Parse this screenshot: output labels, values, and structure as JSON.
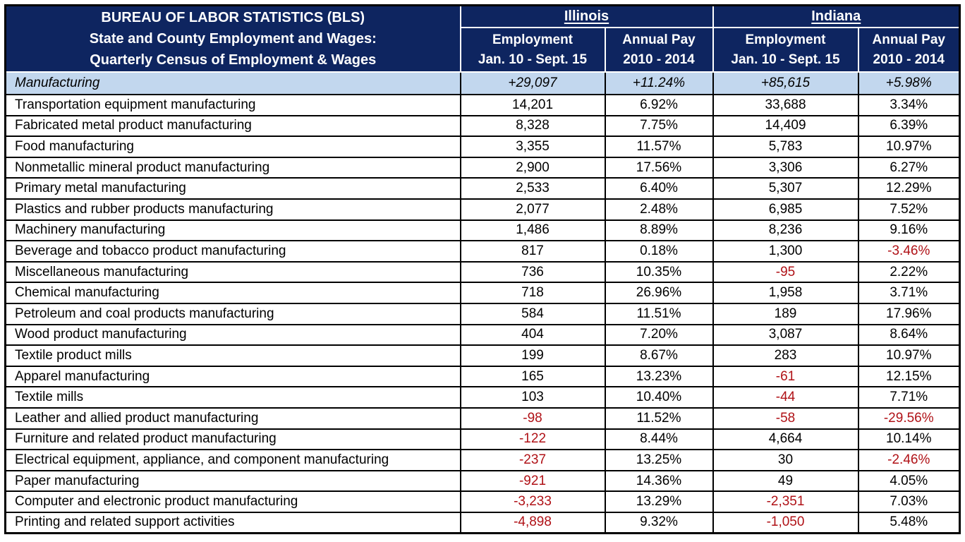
{
  "colors": {
    "header_bg": "#0E2560",
    "header_text": "#ffffff",
    "summary_bg": "#C2D7EE",
    "negative_text": "#B01217",
    "body_text": "#000000",
    "grid_border": "#000000",
    "header_border": "#ffffff"
  },
  "header": {
    "title_lines": [
      "BUREAU OF LABOR STATISTICS (BLS)",
      "State and County Employment and Wages:",
      "Quarterly Census of Employment & Wages"
    ],
    "groups": [
      {
        "state": "Illinois",
        "sub": [
          {
            "line1": "Employment",
            "line2": "Jan. 10 - Sept. 15"
          },
          {
            "line1": "Annual Pay",
            "line2": "2010 - 2014"
          }
        ]
      },
      {
        "state": "Indiana",
        "sub": [
          {
            "line1": "Employment",
            "line2": "Jan. 10 - Sept. 15"
          },
          {
            "line1": "Annual Pay",
            "line2": "2010 - 2014"
          }
        ]
      }
    ]
  },
  "summary_row": {
    "label": "Manufacturing",
    "values": [
      "+29,097",
      "+11.24%",
      "+85,615",
      "+5.98%"
    ]
  },
  "rows": [
    {
      "label": "Transportation equipment manufacturing",
      "values": [
        "14,201",
        "6.92%",
        "33,688",
        "3.34%"
      ]
    },
    {
      "label": "Fabricated metal product manufacturing",
      "values": [
        "8,328",
        "7.75%",
        "14,409",
        "6.39%"
      ]
    },
    {
      "label": "Food manufacturing",
      "values": [
        "3,355",
        "11.57%",
        "5,783",
        "10.97%"
      ]
    },
    {
      "label": "Nonmetallic mineral product manufacturing",
      "values": [
        "2,900",
        "17.56%",
        "3,306",
        "6.27%"
      ]
    },
    {
      "label": "Primary metal manufacturing",
      "values": [
        "2,533",
        "6.40%",
        "5,307",
        "12.29%"
      ]
    },
    {
      "label": "Plastics and rubber products manufacturing",
      "values": [
        "2,077",
        "2.48%",
        "6,985",
        "7.52%"
      ]
    },
    {
      "label": "Machinery manufacturing",
      "values": [
        "1,486",
        "8.89%",
        "8,236",
        "9.16%"
      ]
    },
    {
      "label": "Beverage and tobacco product manufacturing",
      "values": [
        "817",
        "0.18%",
        "1,300",
        "-3.46%"
      ]
    },
    {
      "label": "Miscellaneous manufacturing",
      "values": [
        "736",
        "10.35%",
        "-95",
        "2.22%"
      ]
    },
    {
      "label": "Chemical manufacturing",
      "values": [
        "718",
        "26.96%",
        "1,958",
        "3.71%"
      ]
    },
    {
      "label": "Petroleum and coal products manufacturing",
      "values": [
        "584",
        "11.51%",
        "189",
        "17.96%"
      ]
    },
    {
      "label": "Wood product manufacturing",
      "values": [
        "404",
        "7.20%",
        "3,087",
        "8.64%"
      ]
    },
    {
      "label": "Textile product mills",
      "values": [
        "199",
        "8.67%",
        "283",
        "10.97%"
      ]
    },
    {
      "label": "Apparel manufacturing",
      "values": [
        "165",
        "13.23%",
        "-61",
        "12.15%"
      ]
    },
    {
      "label": "Textile mills",
      "values": [
        "103",
        "10.40%",
        "-44",
        "7.71%"
      ]
    },
    {
      "label": "Leather and allied product manufacturing",
      "values": [
        "-98",
        "11.52%",
        "-58",
        "-29.56%"
      ]
    },
    {
      "label": "Furniture and related product manufacturing",
      "values": [
        "-122",
        "8.44%",
        "4,664",
        "10.14%"
      ]
    },
    {
      "label": "Electrical equipment, appliance, and component manufacturing",
      "values": [
        "-237",
        "13.25%",
        "30",
        "-2.46%"
      ]
    },
    {
      "label": "Paper manufacturing",
      "values": [
        "-921",
        "14.36%",
        "49",
        "4.05%"
      ]
    },
    {
      "label": "Computer and electronic product manufacturing",
      "values": [
        "-3,233",
        "13.29%",
        "-2,351",
        "7.03%"
      ]
    },
    {
      "label": "Printing and related support activities",
      "values": [
        "-4,898",
        "9.32%",
        "-1,050",
        "5.48%"
      ]
    }
  ],
  "chart_data": {
    "type": "table",
    "title": "BUREAU OF LABOR STATISTICS (BLS) State and County Employment and Wages: Quarterly Census of Employment & Wages",
    "column_groups": [
      {
        "name": "Illinois",
        "columns": [
          "Employment Jan. 10 - Sept. 15",
          "Annual Pay 2010 - 2014"
        ]
      },
      {
        "name": "Indiana",
        "columns": [
          "Employment Jan. 10 - Sept. 15",
          "Annual Pay 2010 - 2014"
        ]
      }
    ],
    "rows": [
      {
        "industry": "Manufacturing",
        "il_employment": 29097,
        "il_annual_pay_pct": 11.24,
        "in_employment": 85615,
        "in_annual_pay_pct": 5.98,
        "is_total": true
      },
      {
        "industry": "Transportation equipment manufacturing",
        "il_employment": 14201,
        "il_annual_pay_pct": 6.92,
        "in_employment": 33688,
        "in_annual_pay_pct": 3.34
      },
      {
        "industry": "Fabricated metal product manufacturing",
        "il_employment": 8328,
        "il_annual_pay_pct": 7.75,
        "in_employment": 14409,
        "in_annual_pay_pct": 6.39
      },
      {
        "industry": "Food manufacturing",
        "il_employment": 3355,
        "il_annual_pay_pct": 11.57,
        "in_employment": 5783,
        "in_annual_pay_pct": 10.97
      },
      {
        "industry": "Nonmetallic mineral product manufacturing",
        "il_employment": 2900,
        "il_annual_pay_pct": 17.56,
        "in_employment": 3306,
        "in_annual_pay_pct": 6.27
      },
      {
        "industry": "Primary metal manufacturing",
        "il_employment": 2533,
        "il_annual_pay_pct": 6.4,
        "in_employment": 5307,
        "in_annual_pay_pct": 12.29
      },
      {
        "industry": "Plastics and rubber products manufacturing",
        "il_employment": 2077,
        "il_annual_pay_pct": 2.48,
        "in_employment": 6985,
        "in_annual_pay_pct": 7.52
      },
      {
        "industry": "Machinery manufacturing",
        "il_employment": 1486,
        "il_annual_pay_pct": 8.89,
        "in_employment": 8236,
        "in_annual_pay_pct": 9.16
      },
      {
        "industry": "Beverage and tobacco product manufacturing",
        "il_employment": 817,
        "il_annual_pay_pct": 0.18,
        "in_employment": 1300,
        "in_annual_pay_pct": -3.46
      },
      {
        "industry": "Miscellaneous manufacturing",
        "il_employment": 736,
        "il_annual_pay_pct": 10.35,
        "in_employment": -95,
        "in_annual_pay_pct": 2.22
      },
      {
        "industry": "Chemical manufacturing",
        "il_employment": 718,
        "il_annual_pay_pct": 26.96,
        "in_employment": 1958,
        "in_annual_pay_pct": 3.71
      },
      {
        "industry": "Petroleum and coal products manufacturing",
        "il_employment": 584,
        "il_annual_pay_pct": 11.51,
        "in_employment": 189,
        "in_annual_pay_pct": 17.96
      },
      {
        "industry": "Wood product manufacturing",
        "il_employment": 404,
        "il_annual_pay_pct": 7.2,
        "in_employment": 3087,
        "in_annual_pay_pct": 8.64
      },
      {
        "industry": "Textile product mills",
        "il_employment": 199,
        "il_annual_pay_pct": 8.67,
        "in_employment": 283,
        "in_annual_pay_pct": 10.97
      },
      {
        "industry": "Apparel manufacturing",
        "il_employment": 165,
        "il_annual_pay_pct": 13.23,
        "in_employment": -61,
        "in_annual_pay_pct": 12.15
      },
      {
        "industry": "Textile mills",
        "il_employment": 103,
        "il_annual_pay_pct": 10.4,
        "in_employment": -44,
        "in_annual_pay_pct": 7.71
      },
      {
        "industry": "Leather and allied product manufacturing",
        "il_employment": -98,
        "il_annual_pay_pct": 11.52,
        "in_employment": -58,
        "in_annual_pay_pct": -29.56
      },
      {
        "industry": "Furniture and related product manufacturing",
        "il_employment": -122,
        "il_annual_pay_pct": 8.44,
        "in_employment": 4664,
        "in_annual_pay_pct": 10.14
      },
      {
        "industry": "Electrical equipment, appliance, and component manufacturing",
        "il_employment": -237,
        "il_annual_pay_pct": 13.25,
        "in_employment": 30,
        "in_annual_pay_pct": -2.46
      },
      {
        "industry": "Paper manufacturing",
        "il_employment": -921,
        "il_annual_pay_pct": 14.36,
        "in_employment": 49,
        "in_annual_pay_pct": 4.05
      },
      {
        "industry": "Computer and electronic product manufacturing",
        "il_employment": -3233,
        "il_annual_pay_pct": 13.29,
        "in_employment": -2351,
        "in_annual_pay_pct": 7.03
      },
      {
        "industry": "Printing and related support activities",
        "il_employment": -4898,
        "il_annual_pay_pct": 9.32,
        "in_employment": -1050,
        "in_annual_pay_pct": 5.48
      }
    ]
  }
}
